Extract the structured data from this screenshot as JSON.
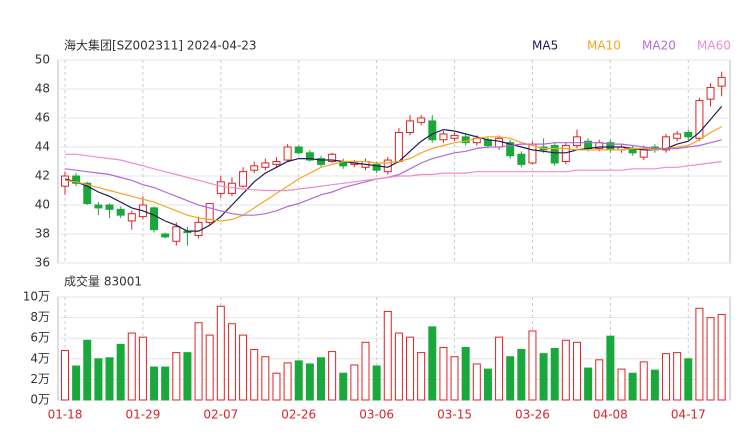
{
  "chart_data": [
    {
      "type": "candlestick",
      "title": "海大集团[SZ002311] 2024-04-23",
      "up_color": "#e02424",
      "down_color": "#1aa83c",
      "open": [
        41.3,
        42,
        41.5,
        40,
        40,
        39.7,
        38.9,
        39.2,
        39.8,
        38,
        37.5,
        38.2,
        37.9,
        38.8,
        40.8,
        40.8,
        41.3,
        42.4,
        42.6,
        42.8,
        43.1,
        44,
        43.6,
        43.2,
        43,
        43,
        42.8,
        42.6,
        42.8,
        42.3,
        43,
        45,
        45.7,
        45.8,
        44.5,
        44.6,
        44.7,
        44.3,
        44.5,
        44,
        44.3,
        43.5,
        42.9,
        44,
        44.1,
        43,
        44.1,
        44.4,
        43.9,
        44.3,
        43.8,
        43.9,
        43.3,
        44,
        43.8,
        44.6,
        45,
        44.6,
        47.3,
        48.2
      ],
      "high": [
        42.3,
        42.2,
        41.6,
        40.2,
        40.1,
        39.9,
        39.6,
        40.6,
        39.9,
        38.1,
        38.8,
        38.5,
        39.2,
        40.1,
        42,
        41.9,
        42.6,
        43,
        43.2,
        43.3,
        44.2,
        44.1,
        43.8,
        43.4,
        43.6,
        43.2,
        43.1,
        43.2,
        43,
        43.3,
        45.3,
        46.2,
        46.2,
        46.2,
        45.1,
        45,
        44.9,
        44.8,
        44.7,
        44.8,
        44.5,
        43.7,
        44.4,
        44.6,
        44.3,
        44.3,
        45.2,
        44.6,
        44.5,
        44.5,
        44.2,
        44.1,
        44.1,
        44.2,
        44.9,
        45.1,
        45.2,
        47.4,
        48.4,
        49.2
      ],
      "low": [
        40.7,
        41.3,
        40,
        39.3,
        39.1,
        39.1,
        38.3,
        39,
        38.1,
        37.7,
        37.2,
        37.2,
        37.7,
        38.6,
        40.5,
        40.6,
        41.2,
        42.2,
        42.4,
        42.6,
        43,
        43.5,
        43,
        42.6,
        42.9,
        42.5,
        42.6,
        42.4,
        42.2,
        42.1,
        42.9,
        44.8,
        45.5,
        44.3,
        44.3,
        44.4,
        44.1,
        44.1,
        43.9,
        43.8,
        43.2,
        42.6,
        42.8,
        43.6,
        42.7,
        42.8,
        43.9,
        43.7,
        43.7,
        43.6,
        43.6,
        43.4,
        43.1,
        43.6,
        43.6,
        44.4,
        44.5,
        44.4,
        46.8,
        47.5
      ],
      "close": [
        42,
        41.5,
        40.1,
        39.8,
        39.7,
        39.3,
        39.4,
        40,
        38.3,
        37.8,
        38.5,
        38.1,
        38.8,
        40.1,
        41.6,
        41.5,
        42.3,
        42.7,
        42.9,
        43,
        44,
        43.6,
        43.1,
        42.8,
        43.5,
        42.7,
        42.9,
        43,
        42.4,
        43.1,
        45,
        45.8,
        46,
        44.5,
        44.9,
        44.8,
        44.3,
        44.6,
        44.1,
        44.6,
        43.4,
        42.8,
        44.2,
        43.8,
        42.9,
        44.1,
        44.7,
        43.9,
        44.3,
        43.8,
        44,
        43.6,
        43.9,
        43.8,
        44.7,
        44.9,
        44.7,
        47.2,
        48.1,
        48.8
      ],
      "series": [
        {
          "name": "MA5",
          "color": "#1f1d55",
          "values": [
            41.8,
            41.6,
            41.3,
            40.9,
            40.6,
            40.2,
            39.8,
            39.6,
            39.3,
            38.9,
            38.6,
            38.2,
            38.2,
            38.6,
            39.2,
            40,
            40.8,
            41.6,
            42.2,
            42.6,
            43,
            43.2,
            43.2,
            43.1,
            43.1,
            43,
            42.9,
            42.8,
            42.7,
            42.6,
            43,
            43.7,
            44.4,
            44.9,
            45.2,
            45.1,
            44.9,
            44.7,
            44.5,
            44.4,
            44.2,
            44,
            43.8,
            43.7,
            43.6,
            43.6,
            43.8,
            43.9,
            44,
            44,
            44,
            43.9,
            43.8,
            43.8,
            43.9,
            44.2,
            44.4,
            45,
            45.9,
            46.8
          ]
        },
        {
          "name": "MA10",
          "color": "#f5a623",
          "values": [
            41.7,
            41.6,
            41.4,
            41.2,
            41,
            40.8,
            40.6,
            40.4,
            40.2,
            39.9,
            39.6,
            39.3,
            39.1,
            39,
            38.9,
            39,
            39.3,
            39.8,
            40.3,
            40.8,
            41.3,
            41.8,
            42.2,
            42.6,
            42.8,
            43,
            43,
            43,
            42.9,
            42.9,
            43,
            43.2,
            43.6,
            43.9,
            44.1,
            44.3,
            44.4,
            44.6,
            44.7,
            44.7,
            44.6,
            44.3,
            44.1,
            43.9,
            43.9,
            43.9,
            43.8,
            43.8,
            43.8,
            43.8,
            43.8,
            43.9,
            43.9,
            43.8,
            43.9,
            44,
            44.1,
            44.5,
            45,
            45.4
          ]
        },
        {
          "name": "MA20",
          "color": "#b36ad9",
          "values": [
            42.5,
            42.4,
            42.3,
            42.2,
            42.1,
            41.9,
            41.7,
            41.4,
            41.2,
            40.9,
            40.6,
            40.3,
            40,
            39.8,
            39.6,
            39.4,
            39.3,
            39.3,
            39.4,
            39.6,
            39.9,
            40.1,
            40.4,
            40.7,
            40.9,
            41.2,
            41.4,
            41.6,
            41.8,
            41.9,
            42.1,
            42.5,
            42.9,
            43.2,
            43.4,
            43.6,
            43.7,
            43.9,
            44,
            44,
            44.1,
            44.2,
            44.2,
            44.2,
            44.3,
            44.3,
            44.3,
            44.3,
            44.3,
            44.2,
            44.2,
            44.1,
            44,
            43.9,
            43.9,
            43.9,
            44,
            44.1,
            44.3,
            44.5
          ]
        },
        {
          "name": "MA60",
          "color": "#f08cc8",
          "values": [
            43.5,
            43.5,
            43.4,
            43.3,
            43.2,
            43.1,
            42.9,
            42.7,
            42.5,
            42.3,
            42.1,
            41.9,
            41.7,
            41.5,
            41.3,
            41.2,
            41.1,
            41.05,
            41,
            41,
            41,
            41.1,
            41.2,
            41.3,
            41.4,
            41.5,
            41.6,
            41.7,
            41.8,
            41.9,
            42,
            42,
            42.1,
            42.1,
            42.2,
            42.2,
            42.2,
            42.3,
            42.3,
            42.3,
            42.3,
            42.3,
            42.3,
            42.3,
            42.3,
            42.3,
            42.4,
            42.4,
            42.4,
            42.4,
            42.4,
            42.5,
            42.5,
            42.5,
            42.6,
            42.6,
            42.7,
            42.8,
            42.9,
            43
          ]
        }
      ],
      "ylim": [
        36,
        50
      ],
      "yticks": [
        36,
        38,
        40,
        42,
        44,
        46,
        48,
        50
      ],
      "grid": true
    },
    {
      "type": "bar",
      "title": "成交量 83001",
      "categories": [
        "01-18",
        null,
        null,
        null,
        null,
        null,
        null,
        "01-29",
        null,
        null,
        null,
        null,
        null,
        null,
        "02-07",
        null,
        null,
        null,
        null,
        null,
        null,
        "02-26",
        null,
        null,
        null,
        null,
        null,
        null,
        "03-06",
        null,
        null,
        null,
        null,
        null,
        null,
        "03-15",
        null,
        null,
        null,
        null,
        null,
        null,
        "03-26",
        null,
        null,
        null,
        null,
        null,
        null,
        "04-08",
        null,
        null,
        null,
        null,
        null,
        null,
        "04-17",
        null,
        null,
        null
      ],
      "values": [
        4.8,
        3.3,
        5.8,
        4.0,
        4.1,
        5.4,
        6.5,
        6.1,
        3.2,
        3.2,
        4.6,
        4.6,
        7.5,
        6.3,
        9.1,
        7.4,
        6.3,
        4.9,
        4.2,
        2.6,
        3.6,
        3.8,
        3.5,
        4.1,
        4.7,
        2.6,
        3.4,
        5.6,
        3.3,
        8.6,
        6.5,
        6.1,
        4.6,
        7.1,
        5.1,
        4.2,
        5.1,
        3.5,
        3.0,
        6.1,
        4.2,
        4.9,
        6.7,
        4.5,
        5.0,
        5.8,
        5.6,
        3.1,
        3.9,
        6.2,
        3.0,
        2.6,
        3.7,
        2.9,
        4.5,
        4.6,
        4.0,
        8.9,
        8.0,
        8.3
      ],
      "ylim": [
        0,
        10
      ],
      "yticks": [
        {
          "value": 0,
          "label": "0万"
        },
        {
          "value": 2,
          "label": "2万"
        },
        {
          "value": 4,
          "label": "4万"
        },
        {
          "value": 6,
          "label": "6万"
        },
        {
          "value": 8,
          "label": "8万"
        },
        {
          "value": 10,
          "label": "10万"
        }
      ],
      "grid": true
    }
  ]
}
